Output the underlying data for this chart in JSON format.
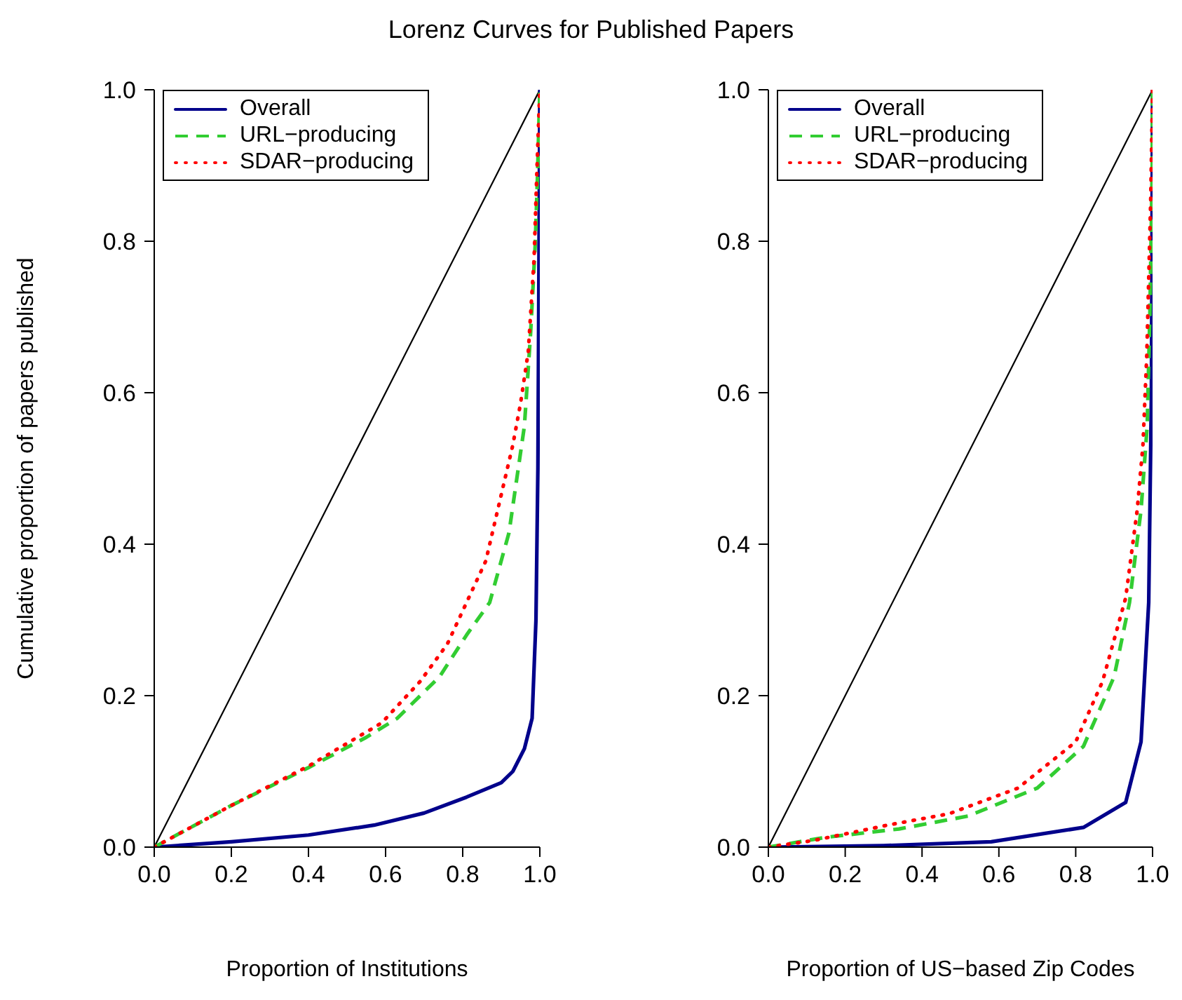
{
  "chart_data": [
    {
      "type": "line",
      "title": "Lorenz Curves for Published Papers",
      "xlabel": "Proportion of Institutions",
      "ylabel": "Cumulative proportion of papers published",
      "xlim": [
        0,
        1
      ],
      "ylim": [
        0,
        1
      ],
      "xticks": [
        {
          "value": 0,
          "label": "0.0"
        },
        {
          "value": 0.2,
          "label": "0.2"
        },
        {
          "value": 0.4,
          "label": "0.4"
        },
        {
          "value": 0.6,
          "label": "0.6"
        },
        {
          "value": 0.8,
          "label": "0.8"
        },
        {
          "value": 1,
          "label": "1.0"
        }
      ],
      "yticks": [
        {
          "value": 0,
          "label": "0.0"
        },
        {
          "value": 0.2,
          "label": "0.2"
        },
        {
          "value": 0.4,
          "label": "0.4"
        },
        {
          "value": 0.6,
          "label": "0.6"
        },
        {
          "value": 0.8,
          "label": "0.8"
        },
        {
          "value": 1,
          "label": "1.0"
        }
      ],
      "grid": false,
      "legend": "top left",
      "marker": "none",
      "series": [
        {
          "color": "#000000",
          "line_style": "solid",
          "x": [
            0,
            1
          ],
          "values": [
            0,
            1
          ]
        },
        {
          "name": "Overall",
          "color": "#00008b",
          "line_style": "solid",
          "x": [
            0,
            0.2,
            0.4,
            0.57,
            0.7,
            0.81,
            0.9,
            0.93,
            0.96,
            0.98,
            0.99,
            0.995,
            1
          ],
          "values": [
            0,
            0.007,
            0.016,
            0.029,
            0.045,
            0.066,
            0.085,
            0.1,
            0.13,
            0.17,
            0.3,
            0.5,
            1
          ]
        },
        {
          "name": "URL−producing",
          "color": "#32cd32",
          "line_style": "dashed",
          "x": [
            0,
            0.2,
            0.4,
            0.55,
            0.63,
            0.74,
            0.81,
            0.87,
            0.92,
            0.96,
            0.976,
            0.988,
            0.994,
            1
          ],
          "values": [
            0,
            0.055,
            0.105,
            0.145,
            0.17,
            0.225,
            0.28,
            0.323,
            0.415,
            0.556,
            0.678,
            0.795,
            0.887,
            1
          ]
        },
        {
          "name": "SDAR−producing",
          "color": "#ff0000",
          "line_style": "dotted",
          "x": [
            0,
            0.2,
            0.4,
            0.59,
            0.69,
            0.76,
            0.86,
            0.93,
            0.95,
            0.97,
            0.985,
            0.994,
            1
          ],
          "values": [
            0,
            0.055,
            0.107,
            0.164,
            0.219,
            0.268,
            0.378,
            0.531,
            0.586,
            0.654,
            0.776,
            0.917,
            1
          ]
        }
      ]
    },
    {
      "type": "line",
      "xlabel": "Proportion of US−based Zip Codes",
      "xlim": [
        0,
        1
      ],
      "ylim": [
        0,
        1
      ],
      "xticks": [
        {
          "value": 0,
          "label": "0.0"
        },
        {
          "value": 0.2,
          "label": "0.2"
        },
        {
          "value": 0.4,
          "label": "0.4"
        },
        {
          "value": 0.6,
          "label": "0.6"
        },
        {
          "value": 0.8,
          "label": "0.8"
        },
        {
          "value": 1,
          "label": "1.0"
        }
      ],
      "yticks": [
        {
          "value": 0,
          "label": "0.0"
        },
        {
          "value": 0.2,
          "label": "0.2"
        },
        {
          "value": 0.4,
          "label": "0.4"
        },
        {
          "value": 0.6,
          "label": "0.6"
        },
        {
          "value": 0.8,
          "label": "0.8"
        },
        {
          "value": 1,
          "label": "1.0"
        }
      ],
      "grid": false,
      "legend": "top left",
      "marker": "none",
      "series": [
        {
          "color": "#000000",
          "line_style": "solid",
          "x": [
            0,
            1
          ],
          "values": [
            0,
            1
          ]
        },
        {
          "name": "Overall",
          "color": "#00008b",
          "line_style": "solid",
          "x": [
            0,
            0.3,
            0.58,
            0.82,
            0.93,
            0.97,
            0.99,
            0.997,
            1
          ],
          "values": [
            0,
            0.002,
            0.007,
            0.026,
            0.059,
            0.139,
            0.323,
            0.6,
            1
          ]
        },
        {
          "name": "URL−producing",
          "color": "#32cd32",
          "line_style": "dashed",
          "x": [
            0,
            0.15,
            0.34,
            0.52,
            0.7,
            0.82,
            0.9,
            0.94,
            0.97,
            0.986,
            0.993,
            0.999,
            1
          ],
          "values": [
            0,
            0.013,
            0.024,
            0.041,
            0.078,
            0.133,
            0.225,
            0.323,
            0.445,
            0.556,
            0.703,
            0.887,
            1
          ]
        },
        {
          "name": "SDAR−producing",
          "color": "#ff0000",
          "line_style": "dotted",
          "x": [
            0,
            0.12,
            0.31,
            0.47,
            0.65,
            0.8,
            0.87,
            0.93,
            0.96,
            0.975,
            0.985,
            0.995,
            1
          ],
          "values": [
            0,
            0.009,
            0.029,
            0.044,
            0.078,
            0.139,
            0.219,
            0.329,
            0.445,
            0.531,
            0.65,
            0.85,
            1
          ]
        }
      ]
    }
  ]
}
